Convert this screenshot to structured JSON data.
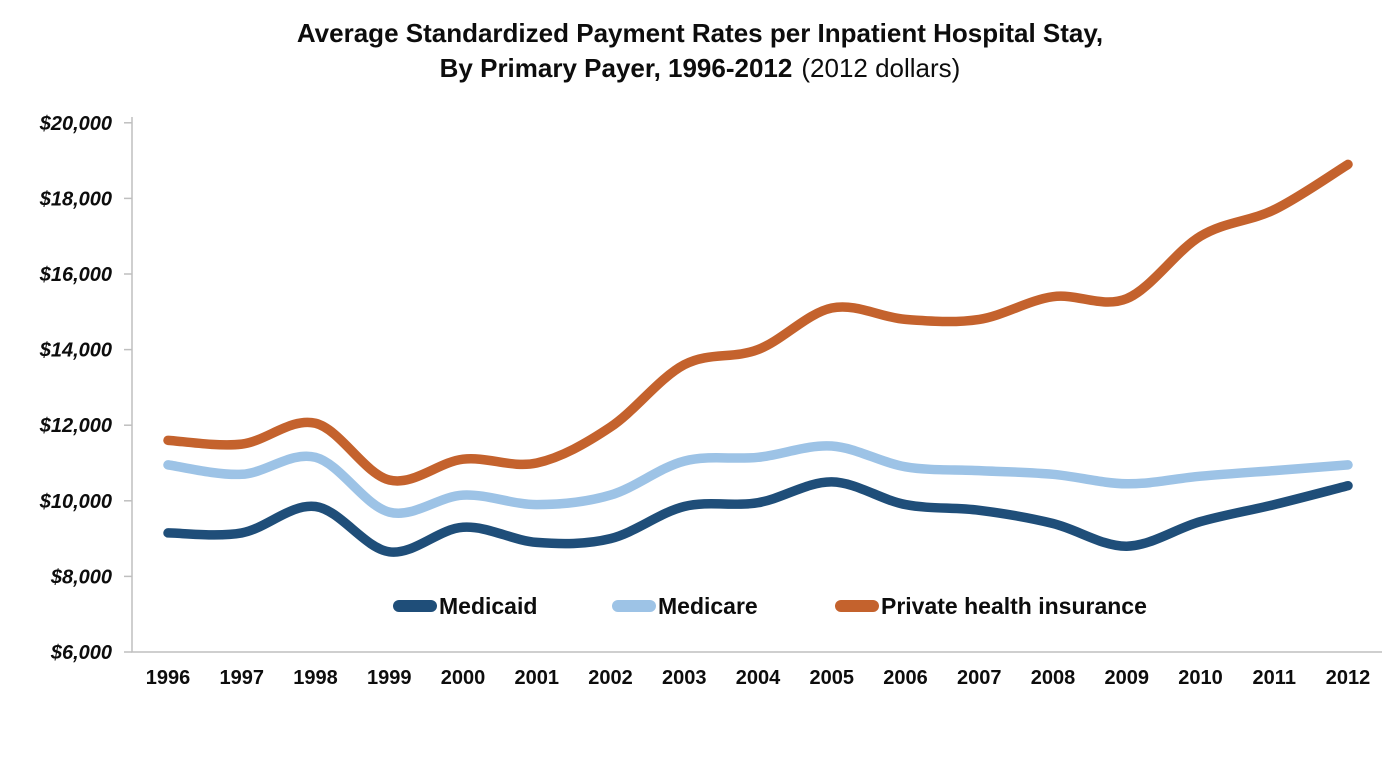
{
  "title": {
    "line1": "Average Standardized Payment Rates per Inpatient Hospital Stay,",
    "line2_bold": "By Primary Payer, 1996-2012",
    "line2_note": "(2012 dollars)"
  },
  "legend": {
    "items": [
      {
        "label": "Medicaid",
        "color": "#1F4E79"
      },
      {
        "label": "Medicare",
        "color": "#9DC3E6"
      },
      {
        "label": "Private health insurance",
        "color": "#C4622D"
      }
    ]
  },
  "chart_data": {
    "type": "line",
    "title": "Average Standardized Payment Rates per Inpatient Hospital Stay, By Primary Payer, 1996-2012 (2012 dollars)",
    "xlabel": "",
    "ylabel": "",
    "categories": [
      "1996",
      "1997",
      "1998",
      "1999",
      "2000",
      "2001",
      "2002",
      "2003",
      "2004",
      "2005",
      "2006",
      "2007",
      "2008",
      "2009",
      "2010",
      "2011",
      "2012"
    ],
    "series": [
      {
        "name": "Medicaid",
        "color": "#1F4E79",
        "values": [
          9150,
          9150,
          9850,
          8650,
          9300,
          8900,
          9000,
          9850,
          9950,
          10500,
          9900,
          9750,
          9400,
          8800,
          9450,
          9900,
          10400
        ]
      },
      {
        "name": "Medicare",
        "color": "#9DC3E6",
        "values": [
          10950,
          10700,
          11150,
          9700,
          10150,
          9900,
          10150,
          11050,
          11150,
          11450,
          10900,
          10800,
          10700,
          10450,
          10650,
          10800,
          10950
        ]
      },
      {
        "name": "Private health insurance",
        "color": "#C4622D",
        "values": [
          11600,
          11500,
          12050,
          10550,
          11100,
          11000,
          11950,
          13600,
          14000,
          15100,
          14800,
          14800,
          15400,
          15350,
          17000,
          17700,
          18900
        ]
      }
    ],
    "ylim": [
      6000,
      20000
    ],
    "y_tick_step": 2000,
    "y_tick_labels": [
      "$6,000",
      "$8,000",
      "$10,000",
      "$12,000",
      "$14,000",
      "$16,000",
      "$18,000",
      "$20,000"
    ],
    "grid": "off",
    "smooth": true,
    "legend_position": "bottom-center-inside",
    "axis_color": "#BFBFBF",
    "line_width": 9.5
  }
}
